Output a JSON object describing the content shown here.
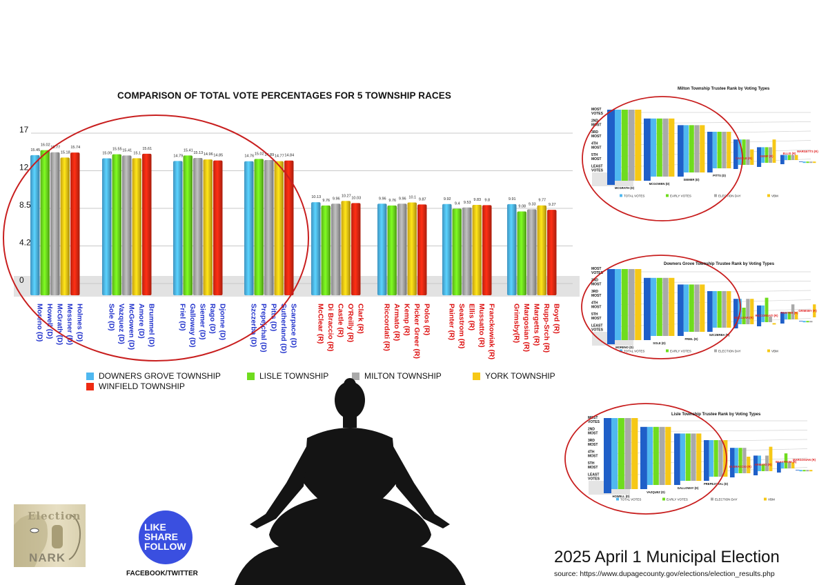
{
  "chart_data": {
    "type": "bar",
    "title": "COMPARISON OF TOTAL VOTE PERCENTAGES FOR 5 TOWNSHIP RACES",
    "xlabel": "",
    "ylabel": "",
    "ylim": [
      0,
      17
    ],
    "yticks": [
      "17",
      "12.75",
      "8.5",
      "4.25",
      "0"
    ],
    "grid": true,
    "legend_position": "bottom",
    "series": [
      {
        "name": "DOWNERS GROVE TOWNSHIP",
        "color": "#4fb8f0",
        "labels": [
          "Moreno (D)",
          "Sole (D)",
          "Friel (D)",
          "Szczerba (D)",
          "McClear (R)",
          "Riccordati (R)",
          "Painter (R)",
          "Grimsby(R)"
        ],
        "values": [
          15.45,
          15.09,
          14.79,
          14.76,
          10.13,
          9.96,
          9.92,
          9.91
        ]
      },
      {
        "name": "LISLE TOWNSHIP",
        "color": "#6fdc1e",
        "labels": [
          "Howell (D)",
          "Vazquez (D)",
          "Galloway (D)",
          "Prepejchal (D)",
          "Di Braccio (R)",
          "Armato (R)",
          "Seastrom (R)",
          "Margosian (R)"
        ],
        "values": [
          16.02,
          15.55,
          15.41,
          15.02,
          9.76,
          9.76,
          9.4,
          9.08
        ]
      },
      {
        "name": "MILTON TOWNSHIP",
        "color": "#a9a9a9",
        "labels": [
          "McGrath (D)",
          "McGowen (D)",
          "Siemer (D)",
          "Pitts (D)",
          "Castle (R)",
          "Kemp (R)",
          "Ellis (R)",
          "Margetts (R)"
        ],
        "values": [
          15.77,
          15.41,
          15.13,
          14.89,
          9.96,
          9.96,
          9.53,
          9.33
        ]
      },
      {
        "name": "YORK TOWNSHIP",
        "color": "#f6c816",
        "labels": [
          "Messner (D)",
          "Amore (D)",
          "Rago (D)",
          "Sutherland (D)",
          "O'Reilly (R)",
          "Picker Greer (R)",
          "Mussatto (R)",
          "Rupp-Srch (R)"
        ],
        "values": [
          15.18,
          15.1,
          14.96,
          14.77,
          10.27,
          10.1,
          9.83,
          9.77
        ]
      },
      {
        "name": "WINFIELD TOWNSHIP",
        "color": "#ee2a12",
        "labels": [
          "Holmes (D)",
          "Brummel (D)",
          "Djonne (D)",
          "Scarpace (D)",
          "Clark (R)",
          "Polos (R)",
          "Franckowiak (R)",
          "Boyd (R)"
        ],
        "values": [
          15.74,
          15.61,
          14.85,
          14.84,
          10.03,
          9.87,
          9.8,
          9.27
        ]
      }
    ],
    "label_colors": {
      "D": "#2233cc",
      "R": "#dd1111"
    }
  },
  "side_charts": [
    {
      "title": "Milton Township Trustee Rank by Voting Types",
      "type": "bar",
      "y_labels": [
        "MOST VOTES",
        "2ND MOST",
        "3RD MOST",
        "4TH MOST",
        "5TH MOST",
        "LEAST VOTES"
      ],
      "legend": [
        "TOTAL VOTES",
        "EARLY VOTES",
        "ELECTION DAY",
        "VBM"
      ],
      "legend_colors": [
        "#4fb8f0",
        "#6fdc1e",
        "#a9a9a9",
        "#f6c816"
      ],
      "candidates": [
        {
          "name": "MCGRATH (D)",
          "party": "D",
          "levels": [
            6,
            6,
            6,
            6
          ]
        },
        {
          "name": "MCGOWEN (D)",
          "party": "D",
          "levels": [
            5.2,
            5.2,
            5.2,
            5.2
          ]
        },
        {
          "name": "SIEMER (D)",
          "party": "D",
          "levels": [
            4.6,
            4.6,
            4.6,
            4.6
          ]
        },
        {
          "name": "PITTS (D)",
          "party": "D",
          "levels": [
            4.0,
            4.0,
            4.0,
            4.0
          ]
        },
        {
          "name": "CASTLE (R)",
          "party": "R",
          "levels": [
            3.3,
            3.3,
            3.3,
            2.4
          ]
        },
        {
          "name": "KEMP (R)",
          "party": "R",
          "levels": [
            2.6,
            2.6,
            2.6,
            3.3
          ]
        },
        {
          "name": "ELLIS (R)",
          "party": "R",
          "levels": [
            1.9,
            1.9,
            1.9,
            1.9
          ]
        },
        {
          "name": "MARGETTS (R)",
          "party": "R",
          "levels": [
            1.3,
            1.3,
            1.3,
            1.3
          ]
        }
      ]
    },
    {
      "title": "Downers Grove Township Trustee Rank by Voting Types",
      "type": "bar",
      "y_labels": [
        "MOST VOTES",
        "2ND MOST",
        "3RD MOST",
        "4TH MOST",
        "5TH MOST",
        "LEAST VOTES"
      ],
      "legend": [
        "TOTAL VOTES",
        "EARLY VOTES",
        "ELECTION DAY",
        "VBM"
      ],
      "legend_colors": [
        "#4fb8f0",
        "#6fdc1e",
        "#a9a9a9",
        "#f6c816"
      ],
      "candidates": [
        {
          "name": "MORENO (D)",
          "party": "D",
          "levels": [
            6,
            6,
            6,
            6
          ]
        },
        {
          "name": "SOLE (D)",
          "party": "D",
          "levels": [
            5.2,
            5.2,
            5.2,
            5.2
          ]
        },
        {
          "name": "FRIEL (D)",
          "party": "D",
          "levels": [
            4.6,
            4.6,
            4.6,
            4.6
          ]
        },
        {
          "name": "SZCZERBA (D)",
          "party": "D",
          "levels": [
            4.0,
            4.0,
            4.0,
            4.0
          ]
        },
        {
          "name": "MCCLEAR (R)",
          "party": "R",
          "levels": [
            3.3,
            2.5,
            3.3,
            3.3
          ]
        },
        {
          "name": "RICCORDATI (R)",
          "party": "R",
          "levels": [
            2.7,
            3.4,
            1.7,
            1.1
          ]
        },
        {
          "name": "PAINTER (R)",
          "party": "R",
          "levels": [
            2.1,
            2.1,
            2.8,
            2.1
          ]
        },
        {
          "name": "GRIMSBY (R)",
          "party": "R",
          "levels": [
            1.3,
            1.3,
            1.3,
            2.8
          ]
        }
      ]
    },
    {
      "title": "Lisle Township Trustee Rank by Voting Types",
      "type": "bar",
      "y_labels": [
        "MOST VOTES",
        "2ND MOST",
        "3RD MOST",
        "4TH MOST",
        "5TH MOST",
        "LEAST VOTES"
      ],
      "legend": [
        "TOTAL VOTES",
        "EARLY VOTES",
        "ELECTION DAY",
        "VBM"
      ],
      "legend_colors": [
        "#4fb8f0",
        "#6fdc1e",
        "#a9a9a9",
        "#f6c816"
      ],
      "candidates": [
        {
          "name": "HOWELL (D)",
          "party": "D",
          "levels": [
            6,
            6,
            6,
            6
          ]
        },
        {
          "name": "VAZQUEZ (D)",
          "party": "D",
          "levels": [
            5.2,
            5.2,
            5.2,
            5.2
          ]
        },
        {
          "name": "GALLOWAY (D)",
          "party": "D",
          "levels": [
            4.6,
            4.6,
            4.6,
            4.6
          ]
        },
        {
          "name": "PREPEJCHAL (D)",
          "party": "D",
          "levels": [
            4.0,
            4.0,
            4.0,
            4.0
          ]
        },
        {
          "name": "DI BRACCIO (R)",
          "party": "R",
          "levels": [
            3.3,
            3.3,
            3.3,
            2.5
          ]
        },
        {
          "name": "ARMATO (R)",
          "party": "R",
          "levels": [
            2.6,
            1.8,
            2.6,
            3.4
          ]
        },
        {
          "name": "SEASTROM (R)",
          "party": "R",
          "levels": [
            2.0,
            2.8,
            2.0,
            2.0
          ]
        },
        {
          "name": "MARGOSIAN (R)",
          "party": "R",
          "levels": [
            1.3,
            1.3,
            1.3,
            1.3
          ]
        }
      ]
    }
  ],
  "branding": {
    "logo_text_top": "Election",
    "logo_text_bottom": "NARK",
    "social_lines": [
      "LIKE",
      "SHARE",
      "FOLLOW"
    ],
    "social_caption": "FACEBOOK/TWITTER"
  },
  "footer": {
    "title": "2025 April 1 Municipal Election",
    "source": "source: https://www.dupagecounty.gov/elections/election_results.php"
  }
}
